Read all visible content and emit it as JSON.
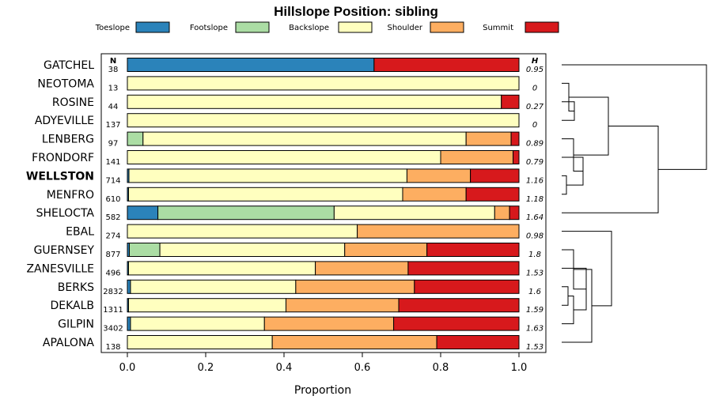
{
  "chart_data": {
    "type": "bar",
    "orientation": "horizontal-stacked",
    "title": "Hillslope Position: sibling",
    "xlabel": "Proportion",
    "ylabel": "",
    "xlim": [
      0,
      1
    ],
    "x_ticks": [
      "0.0",
      "0.2",
      "0.4",
      "0.6",
      "0.8",
      "1.0"
    ],
    "n_header": "N",
    "h_header": "H",
    "highlight": "WELLSTON",
    "legend": [
      {
        "name": "Toeslope",
        "color": "#2b83ba"
      },
      {
        "name": "Footslope",
        "color": "#abdda4"
      },
      {
        "name": "Backslope",
        "color": "#ffffbf"
      },
      {
        "name": "Shoulder",
        "color": "#fdae61"
      },
      {
        "name": "Summit",
        "color": "#d7191c"
      }
    ],
    "rows": [
      {
        "name": "GATCHEL",
        "n": "38",
        "h": "0.95",
        "values": [
          0.63,
          0.0,
          0.0,
          0.0,
          0.37
        ]
      },
      {
        "name": "NEOTOMA",
        "n": "13",
        "h": "0",
        "values": [
          0.0,
          0.0,
          1.0,
          0.0,
          0.0
        ]
      },
      {
        "name": "ROSINE",
        "n": "44",
        "h": "0.27",
        "values": [
          0.0,
          0.0,
          0.955,
          0.0,
          0.045
        ]
      },
      {
        "name": "ADYEVILLE",
        "n": "137",
        "h": "0",
        "values": [
          0.0,
          0.0,
          1.0,
          0.0,
          0.0
        ]
      },
      {
        "name": "LENBERG",
        "n": "97",
        "h": "0.89",
        "values": [
          0.0,
          0.04,
          0.825,
          0.115,
          0.02
        ]
      },
      {
        "name": "FRONDORF",
        "n": "141",
        "h": "0.79",
        "values": [
          0.0,
          0.0,
          0.8,
          0.185,
          0.015
        ]
      },
      {
        "name": "WELLSTON",
        "n": "714",
        "h": "1.16",
        "values": [
          0.004,
          0.0,
          0.71,
          0.162,
          0.124
        ]
      },
      {
        "name": "MENFRO",
        "n": "610",
        "h": "1.18",
        "values": [
          0.003,
          0.0,
          0.7,
          0.162,
          0.135
        ]
      },
      {
        "name": "SHELOCTA",
        "n": "582",
        "h": "1.64",
        "values": [
          0.078,
          0.45,
          0.41,
          0.038,
          0.024
        ]
      },
      {
        "name": "EBAL",
        "n": "274",
        "h": "0.98",
        "values": [
          0.0,
          0.0,
          0.587,
          0.413,
          0.0
        ]
      },
      {
        "name": "GUERNSEY",
        "n": "877",
        "h": "1.8",
        "values": [
          0.005,
          0.078,
          0.472,
          0.21,
          0.235
        ]
      },
      {
        "name": "ZANESVILLE",
        "n": "496",
        "h": "1.53",
        "values": [
          0.003,
          0.0,
          0.477,
          0.237,
          0.283
        ]
      },
      {
        "name": "BERKS",
        "n": "2832",
        "h": "1.6",
        "values": [
          0.008,
          0.0,
          0.422,
          0.303,
          0.267
        ]
      },
      {
        "name": "DEKALB",
        "n": "1311",
        "h": "1.59",
        "values": [
          0.003,
          0.0,
          0.402,
          0.288,
          0.307
        ]
      },
      {
        "name": "GILPIN",
        "n": "3402",
        "h": "1.63",
        "values": [
          0.008,
          0.0,
          0.342,
          0.33,
          0.32
        ]
      },
      {
        "name": "APALONA",
        "n": "138",
        "h": "1.53",
        "values": [
          0.0,
          0.0,
          0.37,
          0.42,
          0.21
        ]
      }
    ]
  }
}
